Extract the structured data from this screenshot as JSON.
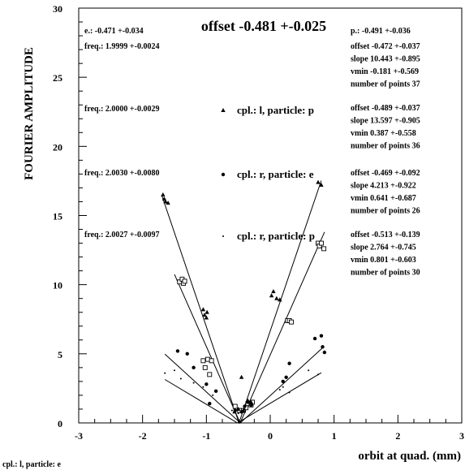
{
  "chart_data": {
    "type": "scatter",
    "title": "offset -0.481 +-0.025",
    "xlabel": "orbit at quad. (mm)",
    "ylabel": "FOURIER AMPLITUDE",
    "caption": "cpl.: l,  particle: e",
    "xlim": [
      -3,
      3
    ],
    "ylim": [
      0,
      30
    ],
    "x_ticks": [
      -3,
      -2,
      -1,
      0,
      1,
      2,
      3
    ],
    "y_ticks": [
      0,
      5,
      10,
      15,
      20,
      25,
      30
    ],
    "x_tick_labels": [
      "-3",
      "-2",
      "-1",
      "0",
      "1",
      "2",
      "3"
    ],
    "y_tick_labels": [
      "0",
      "5",
      "10",
      "15",
      "20",
      "25",
      "30"
    ],
    "grid": false,
    "legend_position": "center",
    "header_left": "e.: -0.471 +-0.034",
    "header_right": "p.: -0.491 +-0.036",
    "series": [
      {
        "name": "cpl.: l,  particle: e",
        "marker": "open-square",
        "freq": "freq.: 1.9999 +-0.0024",
        "stats": [
          "offset -0.472 +-0.037",
          "slope  10.443 +-0.895",
          "vmin   -0.181 +-0.569",
          "number of points    37"
        ],
        "fit": {
          "vertex": -0.472,
          "slope": 10.443,
          "x_range": [
            -1.5,
            0.85
          ]
        },
        "points": [
          [
            -1.42,
            10.2
          ],
          [
            -1.38,
            10.4
          ],
          [
            -1.36,
            10.1
          ],
          [
            -1.34,
            10.25
          ],
          [
            -1.05,
            4.5
          ],
          [
            -0.98,
            4.6
          ],
          [
            -1.02,
            4.0
          ],
          [
            -0.92,
            4.5
          ],
          [
            -0.95,
            3.5
          ],
          [
            -0.55,
            1.2
          ],
          [
            -0.48,
            0.9
          ],
          [
            -0.42,
            0.9
          ],
          [
            -0.38,
            1.1
          ],
          [
            -0.35,
            1.4
          ],
          [
            -0.3,
            1.3
          ],
          [
            -0.28,
            1.5
          ],
          [
            0.27,
            7.4
          ],
          [
            0.3,
            7.4
          ],
          [
            0.33,
            7.3
          ],
          [
            0.75,
            13.0
          ],
          [
            0.77,
            12.8
          ],
          [
            0.8,
            13.0
          ],
          [
            0.84,
            12.6
          ]
        ]
      },
      {
        "name": "cpl.: l,  particle: p",
        "marker": "triangle",
        "freq": "freq.: 2.0000 +-0.0029",
        "stats": [
          "offset -0.489 +-0.037",
          "slope  13.597 +-0.905",
          "vmin   0.387 +-0.558",
          "number of points    36"
        ],
        "fit": {
          "vertex": -0.489,
          "slope": 13.597,
          "x_range": [
            -1.7,
            0.8
          ]
        },
        "points": [
          [
            -1.68,
            16.5
          ],
          [
            -1.66,
            16.2
          ],
          [
            -1.64,
            16.0
          ],
          [
            -1.6,
            15.9
          ],
          [
            -1.05,
            8.2
          ],
          [
            -1.03,
            7.8
          ],
          [
            -1.0,
            7.6
          ],
          [
            -0.99,
            8.0
          ],
          [
            -0.56,
            0.8
          ],
          [
            -0.5,
            1.0
          ],
          [
            -0.45,
            3.3
          ],
          [
            -0.42,
            0.9
          ],
          [
            -0.35,
            1.6
          ],
          [
            -0.3,
            1.5
          ],
          [
            0.02,
            9.2
          ],
          [
            0.05,
            9.5
          ],
          [
            0.1,
            9.0
          ],
          [
            0.15,
            8.9
          ],
          [
            0.75,
            17.4
          ],
          [
            0.8,
            17.2
          ]
        ]
      },
      {
        "name": "cpl.: r,  particle: e",
        "marker": "dot",
        "freq": "freq.: 2.0030 +-0.0080",
        "stats": [
          "offset -0.469 +-0.092",
          "slope  4.213 +-0.922",
          "vmin   0.641 +-0.687",
          "number of points    26"
        ],
        "fit": {
          "vertex": -0.469,
          "slope": 4.213,
          "x_range": [
            -1.65,
            0.82
          ]
        },
        "points": [
          [
            -1.45,
            5.2
          ],
          [
            -1.3,
            5.0
          ],
          [
            -1.2,
            4.0
          ],
          [
            -1.0,
            2.8
          ],
          [
            -0.95,
            1.4
          ],
          [
            -0.85,
            2.3
          ],
          [
            -0.55,
            0.9
          ],
          [
            -0.45,
            0.8
          ],
          [
            -0.4,
            1.2
          ],
          [
            -0.35,
            1.5
          ],
          [
            -0.3,
            1.3
          ],
          [
            0.2,
            3.0
          ],
          [
            0.25,
            3.3
          ],
          [
            0.3,
            4.3
          ],
          [
            0.7,
            6.1
          ],
          [
            0.8,
            6.3
          ],
          [
            0.82,
            5.5
          ],
          [
            0.85,
            5.1
          ]
        ]
      },
      {
        "name": "cpl.: r,  particle: p",
        "marker": "small-dot",
        "freq": "freq.: 2.0027 +-0.0097",
        "stats": [
          "offset -0.513 +-0.139",
          "slope  2.764 +-0.745",
          "vmin   0.801 +-0.603",
          "number of points    30"
        ],
        "fit": {
          "vertex": -0.513,
          "slope": 2.764,
          "x_range": [
            -1.65,
            0.8
          ]
        },
        "points": [
          [
            -1.65,
            3.6
          ],
          [
            -1.5,
            3.8
          ],
          [
            -1.4,
            3.2
          ],
          [
            -1.2,
            2.9
          ],
          [
            -1.05,
            2.6
          ],
          [
            -0.9,
            2.0
          ],
          [
            -0.6,
            0.9
          ],
          [
            -0.5,
            0.7
          ],
          [
            -0.4,
            1.0
          ],
          [
            -0.3,
            1.2
          ],
          [
            0.15,
            2.4
          ],
          [
            0.2,
            2.6
          ],
          [
            0.3,
            2.2
          ],
          [
            0.6,
            3.8
          ],
          [
            0.75,
            3.5
          ]
        ]
      }
    ]
  }
}
